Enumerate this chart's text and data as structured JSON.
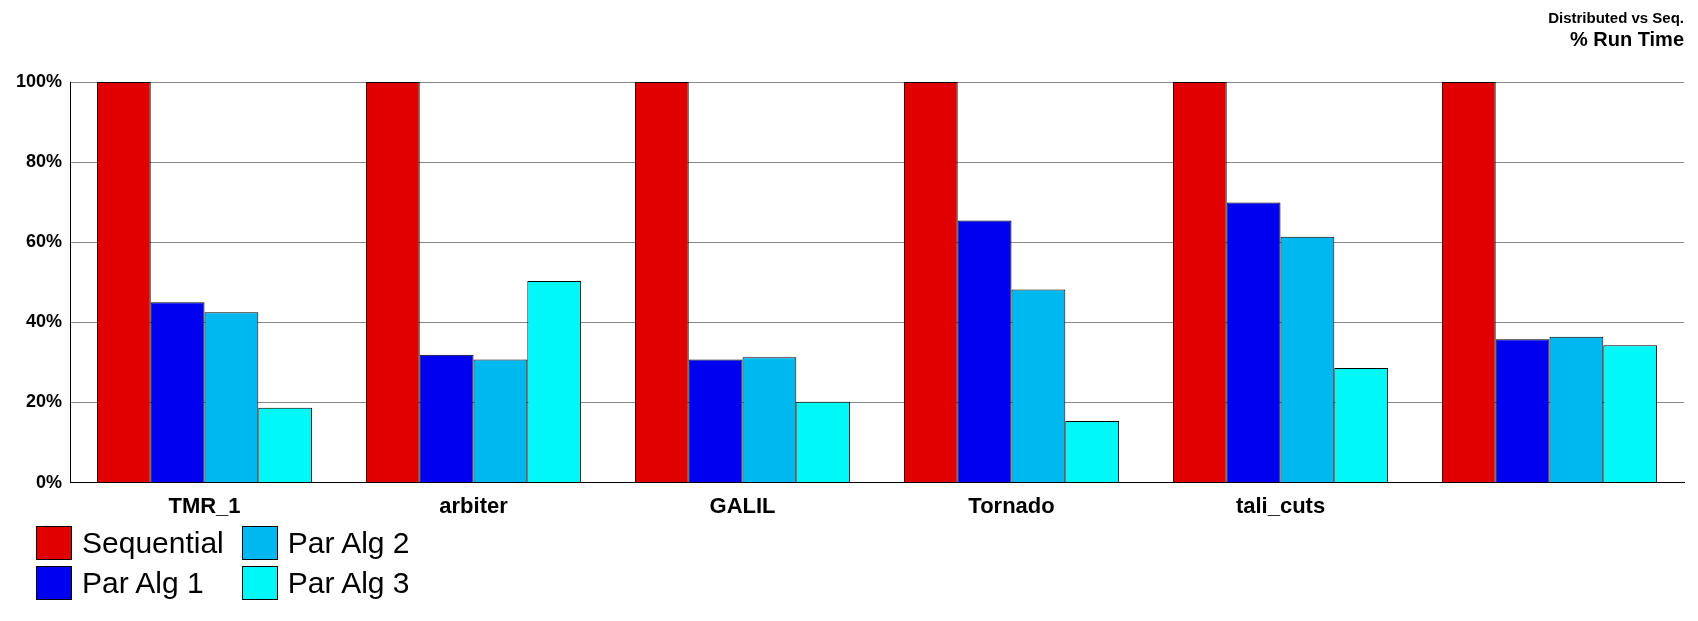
{
  "chart_data": {
    "type": "bar",
    "title": "Distributed vs Seq.",
    "subtitle": "% Run Time",
    "categories": [
      "TMR_1",
      "arbiter",
      "GALIL",
      "Tornado",
      "tali_cuts",
      null
    ],
    "series": [
      {
        "name": "Sequential",
        "color": "#e00000",
        "values": [
          100,
          100,
          100,
          100,
          100,
          100
        ]
      },
      {
        "name": "Par Alg 1",
        "color": "#0000f0",
        "values": [
          45,
          31.9,
          30.7,
          65.4,
          69.9,
          35.8
        ]
      },
      {
        "name": "Par Alg 2",
        "color": "#00b8f0",
        "values": [
          42.5,
          30.7,
          31.3,
          48.2,
          61.4,
          36.4
        ]
      },
      {
        "name": "Par Alg 3",
        "color": "#00f8f8",
        "values": [
          18.7,
          50.3,
          20.2,
          15.4,
          28.6,
          34.3
        ]
      }
    ],
    "ylim": [
      0,
      100
    ],
    "yticks": [
      {
        "value": 0,
        "label": "0%"
      },
      {
        "value": 20,
        "label": "20%"
      },
      {
        "value": 40,
        "label": "40%"
      },
      {
        "value": 60,
        "label": "60%"
      },
      {
        "value": 80,
        "label": "80%"
      },
      {
        "value": 100,
        "label": "100%"
      }
    ],
    "grid": "y",
    "legend": "bottom left"
  }
}
